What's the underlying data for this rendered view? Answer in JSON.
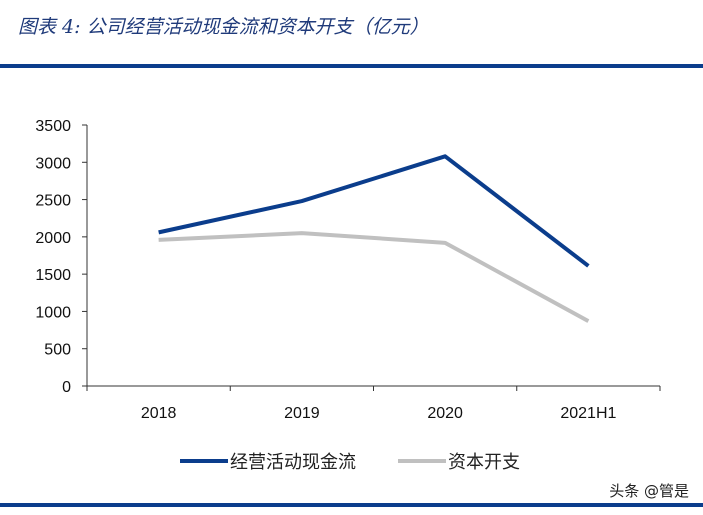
{
  "title": "图表 4:  公司经营活动现金流和资本开支（亿元）",
  "watermark": "头条 @管是",
  "chart_data": {
    "type": "line",
    "categories": [
      "2018",
      "2019",
      "2020",
      "2021H1"
    ],
    "series": [
      {
        "name": "经营活动现金流",
        "values": [
          2060,
          2480,
          3080,
          1610
        ],
        "color": "#0b3d8c"
      },
      {
        "name": "资本开支",
        "values": [
          1960,
          2050,
          1920,
          870
        ],
        "color": "#c0c0c0"
      }
    ],
    "yticks": [
      0,
      500,
      1000,
      1500,
      2000,
      2500,
      3000,
      3500
    ],
    "ylim": [
      0,
      3500
    ],
    "grid": false,
    "legend": "bottom"
  }
}
